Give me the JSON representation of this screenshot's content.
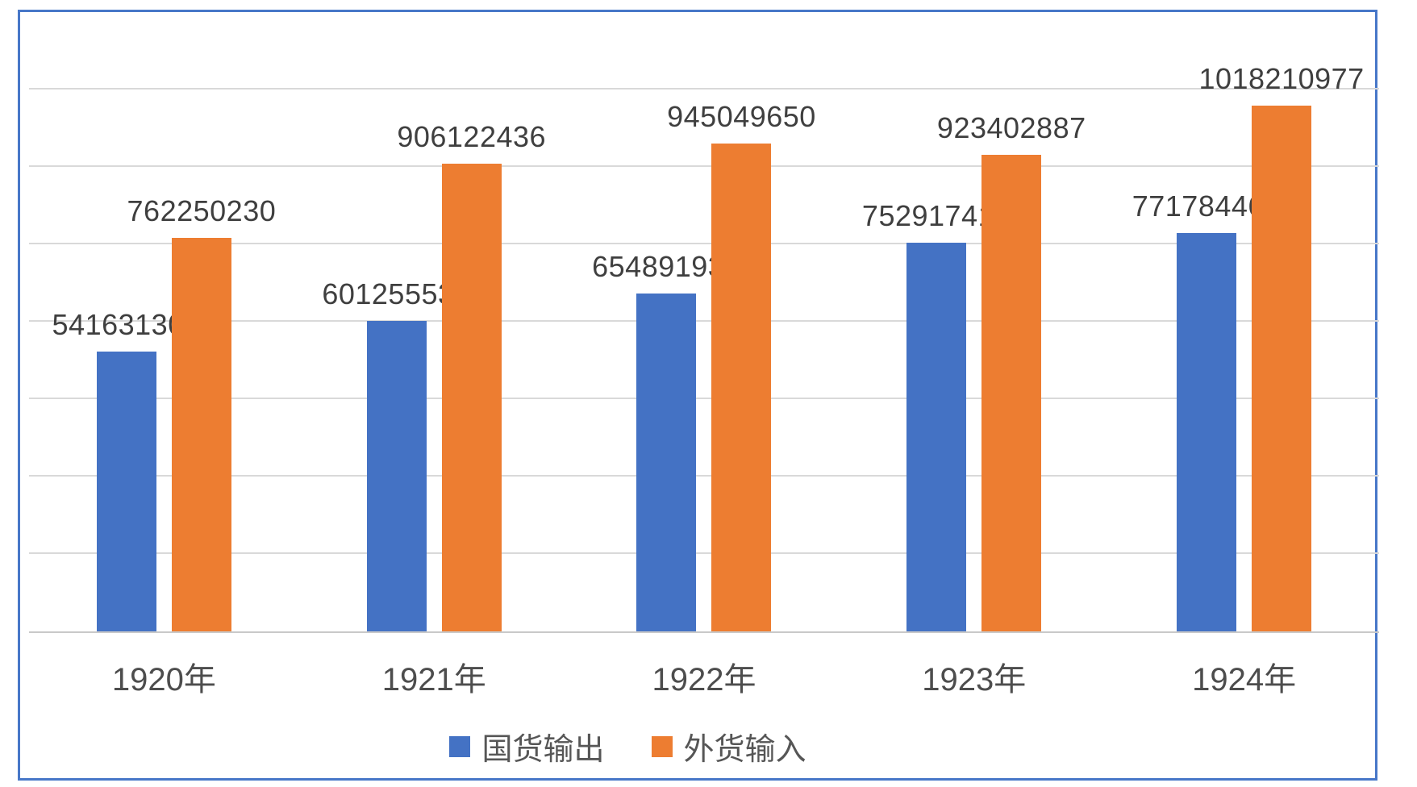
{
  "chart_data": {
    "type": "bar",
    "categories": [
      "1920年",
      "1921年",
      "1922年",
      "1923年",
      "1924年"
    ],
    "series": [
      {
        "name": "国货输出",
        "color": "#4472C4",
        "values": [
          541631300,
          601255537,
          654891933,
          752917416,
          771784468
        ]
      },
      {
        "name": "外货输入",
        "color": "#ED7D31",
        "values": [
          762250230,
          906122436,
          945049650,
          923402887,
          1018210977
        ]
      }
    ],
    "title": "",
    "xlabel": "",
    "ylabel": "",
    "ylim": [
      0,
      1200000000
    ],
    "y_major_unit": 150000000,
    "grid": true,
    "gridline_count": 7,
    "data_labels": true,
    "legend_position": "bottom",
    "frame_color": "#4777C8",
    "gridline_color": "#D9D9D9",
    "axis_line_color": "#C9C9C9",
    "data_label_color": "#3F3F3F",
    "axis_label_color": "#4D4D4D"
  }
}
